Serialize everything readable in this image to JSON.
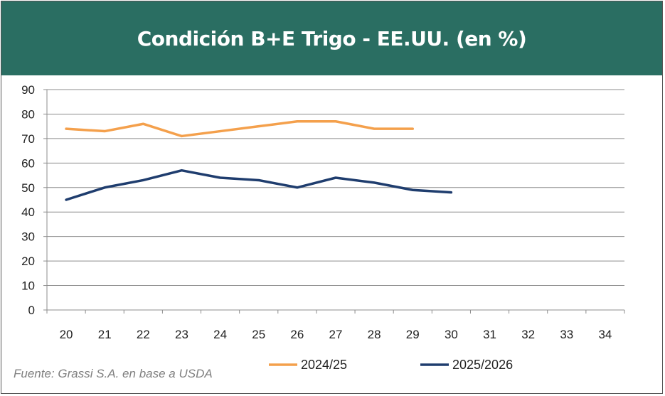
{
  "chart_data": {
    "type": "line",
    "title": "Condición B+E Trigo - EE.UU. (en %)",
    "x": [
      20,
      21,
      22,
      23,
      24,
      25,
      26,
      27,
      28,
      29,
      30,
      31,
      32,
      33,
      34
    ],
    "ylim": [
      0,
      90
    ],
    "yticks": [
      0,
      10,
      20,
      30,
      40,
      50,
      60,
      70,
      80,
      90
    ],
    "grid": true,
    "legend": "bottom",
    "series": [
      {
        "name": "2024/25",
        "color": "#f4a04c",
        "values": [
          74,
          73,
          76,
          71,
          73,
          75,
          77,
          77,
          74,
          74,
          null,
          null,
          null,
          null,
          null
        ]
      },
      {
        "name": "2025/2026",
        "color": "#1f3d6e",
        "values": [
          45,
          50,
          53,
          57,
          54,
          53,
          50,
          54,
          52,
          49,
          48,
          null,
          null,
          null,
          null
        ]
      }
    ]
  },
  "source": "Fuente: Grassi S.A. en base a USDA"
}
